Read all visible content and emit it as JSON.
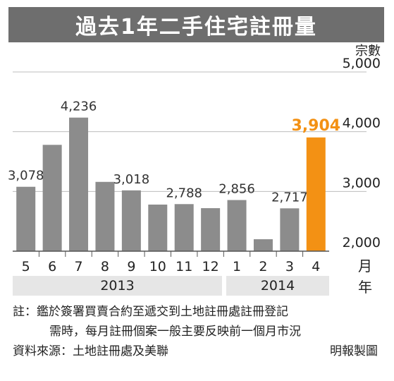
{
  "title": "過去1年二手住宅註冊量",
  "chart_data": {
    "type": "bar",
    "title": "過去1年二手住宅註冊量",
    "ylabel": "宗數",
    "xlabel": "月",
    "year_label": "年",
    "ylim": [
      2000,
      5000
    ],
    "y_ticks": [
      2000,
      3000,
      4000,
      5000
    ],
    "y_tick_labels": [
      "2,000",
      "3,000",
      "4,000",
      "5,000"
    ],
    "categories": [
      "5",
      "6",
      "7",
      "8",
      "9",
      "10",
      "11",
      "12",
      "1",
      "2",
      "3",
      "4"
    ],
    "values": [
      3078,
      3780,
      4236,
      3160,
      3018,
      2780,
      2788,
      2720,
      2856,
      2200,
      2717,
      3904
    ],
    "data_labels": [
      {
        "index": 0,
        "text": "3,078"
      },
      {
        "index": 2,
        "text": "4,236"
      },
      {
        "index": 4,
        "text": "3,018"
      },
      {
        "index": 6,
        "text": "2,788"
      },
      {
        "index": 8,
        "text": "2,856"
      },
      {
        "index": 10,
        "text": "2,717"
      },
      {
        "index": 11,
        "text": "3,904"
      }
    ],
    "highlight_index": 11,
    "years": [
      {
        "label": "2013",
        "from": 0,
        "to": 7
      },
      {
        "label": "2014",
        "from": 8,
        "to": 11
      }
    ],
    "grid": true,
    "colors": {
      "bar": "#8c8c8c",
      "highlight": "#f39114",
      "grid": "#bdbdbd",
      "axis": "#555555"
    }
  },
  "notes": {
    "line1": "註：鑑於簽署買賣合約至遞交到土地註冊處註冊登記",
    "line2": "需時，每月註冊個案一般主要反映前一個月市況",
    "source": "資料來源：土地註冊處及美聯",
    "credit": "明報製圖"
  }
}
